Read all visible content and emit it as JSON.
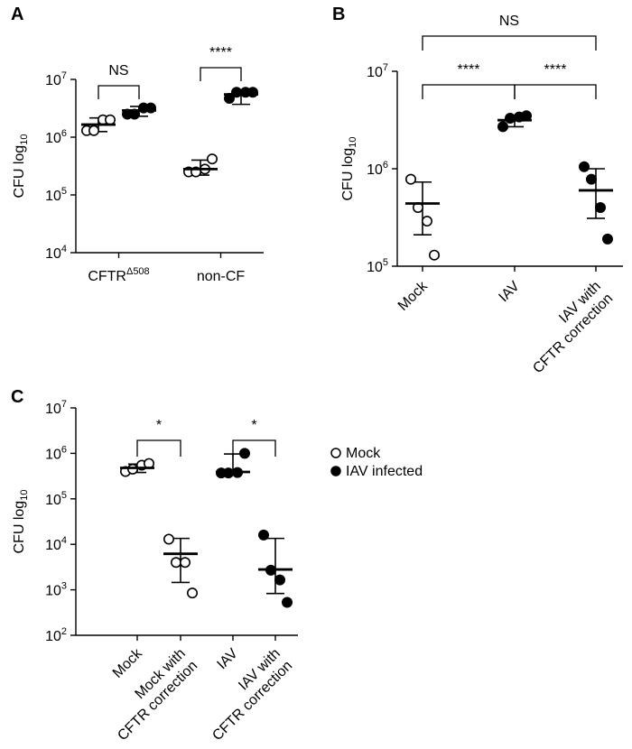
{
  "chart_data": [
    {
      "panel": "A",
      "type": "scatter",
      "ylabel": "CFU log10",
      "y_scale": "log",
      "ylim": [
        10000,
        10000000
      ],
      "y_ticks": [
        10000,
        100000,
        1000000,
        10000000
      ],
      "groups": [
        {
          "label": "CFTR",
          "label_sup": "Δ508",
          "series": "Mock",
          "points": [
            1300000,
            1300000,
            2000000,
            2000000
          ],
          "mean": 1650000,
          "sd": [
            1250000,
            2150000
          ]
        },
        {
          "label": "",
          "series": "IAV infected",
          "points": [
            2500000,
            2500000,
            3200000,
            3200000
          ],
          "mean": 2900000,
          "sd": [
            2300000,
            3400000
          ]
        },
        {
          "label": "non-CF",
          "series": "Mock",
          "points": [
            250000,
            250000,
            280000,
            420000
          ],
          "mean": 280000,
          "sd": [
            220000,
            400000
          ]
        },
        {
          "label": "",
          "series": "IAV infected",
          "points": [
            4700000,
            6000000,
            6000000,
            6000000
          ],
          "mean": 5500000,
          "sd": [
            3700000,
            6200000
          ]
        }
      ],
      "comparisons": [
        {
          "from": 0,
          "to": 1,
          "label": "NS"
        },
        {
          "from": 2,
          "to": 3,
          "label": "****"
        }
      ]
    },
    {
      "panel": "B",
      "type": "scatter",
      "ylabel": "CFU log10",
      "y_scale": "log",
      "ylim": [
        100000,
        10000000
      ],
      "y_ticks": [
        100000,
        1000000,
        10000000
      ],
      "groups": [
        {
          "label": "Mock",
          "series": "Mock",
          "points": [
            780000,
            400000,
            290000,
            130000
          ],
          "mean": 440000,
          "sd": [
            210000,
            730000
          ]
        },
        {
          "label": "IAV",
          "series": "IAV infected",
          "points": [
            2700000,
            3300000,
            3400000,
            3500000
          ],
          "mean": 3150000,
          "sd": [
            2700000,
            3500000
          ]
        },
        {
          "label": "IAV with",
          "label2": "CFTR correction",
          "series": "IAV infected",
          "points": [
            1050000,
            780000,
            400000,
            190000
          ],
          "mean": 600000,
          "sd": [
            310000,
            1000000
          ]
        }
      ],
      "comparisons": [
        {
          "from": 0,
          "to": 1,
          "label": "****"
        },
        {
          "from": 1,
          "to": 2,
          "label": "****"
        },
        {
          "from": 0,
          "to": 2,
          "label": "NS"
        }
      ]
    },
    {
      "panel": "C",
      "type": "scatter",
      "ylabel": "CFU log10",
      "y_scale": "log",
      "ylim": [
        100,
        10000000
      ],
      "y_ticks": [
        100,
        1000,
        10000,
        100000,
        1000000,
        10000000
      ],
      "groups": [
        {
          "label": "Mock",
          "series": "Mock",
          "points": [
            400000,
            450000,
            550000,
            600000
          ],
          "mean": 480000,
          "sd": [
            380000,
            580000
          ]
        },
        {
          "label": "Mock with",
          "label2": "CFTR correction",
          "series": "Mock",
          "points": [
            13000,
            4000,
            4000,
            850
          ],
          "mean": 6200,
          "sd": [
            1450,
            13500
          ]
        },
        {
          "label": "IAV",
          "series": "IAV infected",
          "points": [
            370000,
            370000,
            380000,
            1000000
          ],
          "mean": 390000,
          "sd": [
            360000,
            970000
          ]
        },
        {
          "label": "IAV with",
          "label2": "CFTR correction",
          "series": "IAV infected",
          "points": [
            16000,
            2700,
            1650,
            530
          ],
          "mean": 2800,
          "sd": [
            830,
            13500
          ]
        }
      ],
      "comparisons": [
        {
          "from": 0,
          "to": 1,
          "label": "*"
        },
        {
          "from": 2,
          "to": 3,
          "label": "*"
        }
      ],
      "legend": {
        "placement": "right",
        "entries": [
          {
            "label": "Mock",
            "marker": "open-circle"
          },
          {
            "label": "IAV infected",
            "marker": "filled-circle"
          }
        ]
      }
    }
  ]
}
